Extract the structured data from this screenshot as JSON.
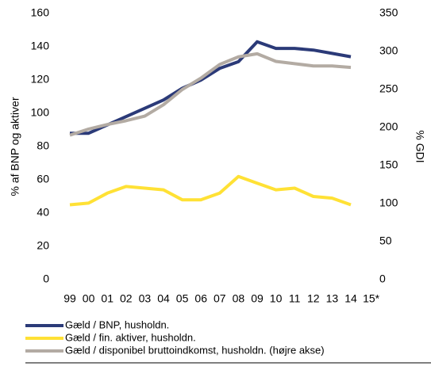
{
  "chart_data": {
    "type": "line",
    "y_label": "% af BNP og aktiver",
    "y2_label": "% GDI",
    "categories": [
      "99",
      "00",
      "01",
      "02",
      "03",
      "04",
      "05",
      "06",
      "07",
      "08",
      "09",
      "10",
      "11",
      "12",
      "13",
      "14",
      "15*"
    ],
    "ylim": [
      0,
      160
    ],
    "yticks": [
      0,
      20,
      40,
      60,
      80,
      100,
      120,
      140,
      160
    ],
    "y2lim": [
      0,
      350
    ],
    "y2ticks": [
      0,
      50,
      100,
      150,
      200,
      250,
      300,
      350
    ],
    "series": [
      {
        "name": "Gæld / BNP, husholdn.",
        "color": "#2b3a78",
        "values": [
          88,
          88,
          93,
          98,
          103,
          108,
          115,
          120,
          127,
          131,
          143,
          139,
          139,
          138,
          136,
          134,
          null
        ]
      },
      {
        "name": "Gæld / fin. aktiver, husholdn.",
        "color": "#ffe135",
        "values": [
          45,
          46,
          52,
          56,
          55,
          54,
          48,
          48,
          52,
          62,
          58,
          54,
          55,
          50,
          49,
          45,
          null
        ]
      },
      {
        "name": "Gæld / disponibel bruttoindkomst, husholdn. (højre akse)",
        "color": "#b3aba3",
        "axis": "y2",
        "values": [
          190,
          198,
          204,
          209,
          215,
          230,
          250,
          265,
          283,
          293,
          297,
          287,
          284,
          281,
          281,
          279,
          null
        ]
      }
    ]
  }
}
